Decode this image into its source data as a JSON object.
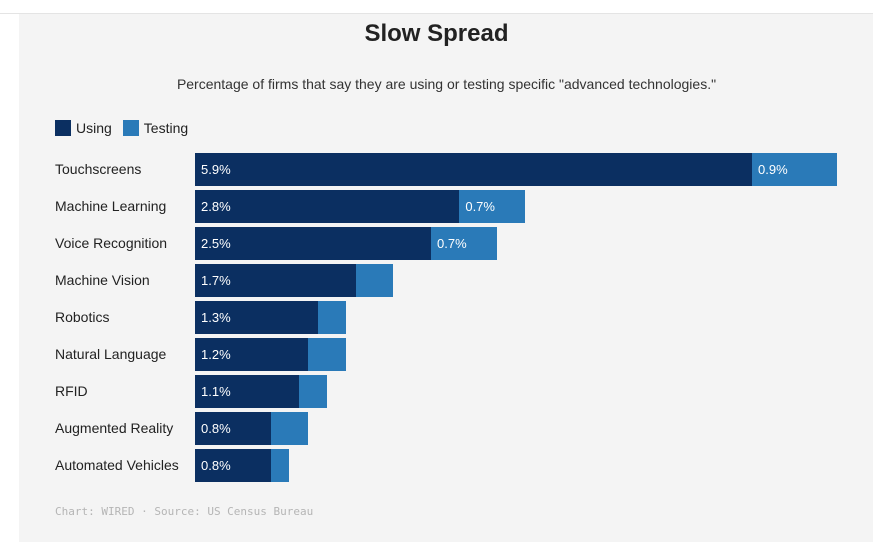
{
  "colors": {
    "using": "#0b2f61",
    "testing": "#2a7ab8",
    "background": "#f4f4f4"
  },
  "chart_data": {
    "type": "bar",
    "orientation": "horizontal",
    "stacked": true,
    "title": "Slow Spread",
    "subtitle": "Percentage of firms that say they are using or testing specific \"advanced technologies.\"",
    "legend": [
      "Using",
      "Testing"
    ],
    "legend_position": "top-left",
    "categories": [
      "Touchscreens",
      "Machine Learning",
      "Voice Recognition",
      "Machine Vision",
      "Robotics",
      "Natural Language",
      "RFID",
      "Augmented Reality",
      "Automated Vehicles"
    ],
    "series": [
      {
        "name": "Using",
        "values": [
          5.9,
          2.8,
          2.5,
          1.7,
          1.3,
          1.2,
          1.1,
          0.8,
          0.8
        ]
      },
      {
        "name": "Testing",
        "values": [
          0.9,
          0.7,
          0.7,
          0.4,
          0.3,
          0.4,
          0.3,
          0.4,
          0.2
        ]
      }
    ],
    "labels": {
      "Using": [
        "5.9%",
        "2.8%",
        "2.5%",
        "1.7%",
        "1.3%",
        "1.2%",
        "1.1%",
        "0.8%",
        "0.8%"
      ],
      "Testing": [
        "0.9%",
        "0.7%",
        "0.7%",
        "",
        "",
        "",
        "",
        "",
        ""
      ]
    },
    "xlim": [
      0,
      6.8
    ],
    "grid": false
  },
  "footer": "Chart: WIRED · Source: US Census Bureau"
}
